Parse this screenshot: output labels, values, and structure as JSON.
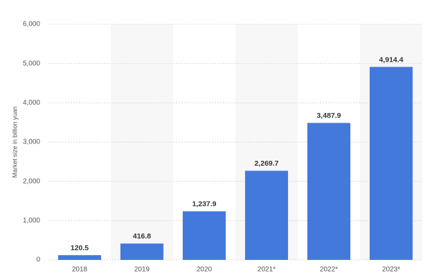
{
  "chart_data": {
    "type": "bar",
    "y_axis_label": "Market size in billion yuan",
    "categories": [
      "2018",
      "2019",
      "2020",
      "2021*",
      "2022*",
      "2023*"
    ],
    "values": [
      120.5,
      416.8,
      1237.9,
      2269.7,
      3487.9,
      4914.4
    ],
    "value_labels": [
      "120.5",
      "416.8",
      "1,237.9",
      "2,269.7",
      "3,487.9",
      "4,914.4"
    ],
    "color": "#4479dc",
    "ylim": [
      0,
      6000
    ],
    "yticks": [
      0,
      {
        "value": 1000,
        "label": "1,000"
      },
      {
        "value": 2000,
        "label": "2,000"
      },
      {
        "value": 3000,
        "label": "3,000"
      },
      {
        "value": 4000,
        "label": "4,000"
      },
      {
        "value": 5000,
        "label": "5,000"
      },
      {
        "value": 6000,
        "label": "6,000"
      }
    ],
    "grid": true
  }
}
